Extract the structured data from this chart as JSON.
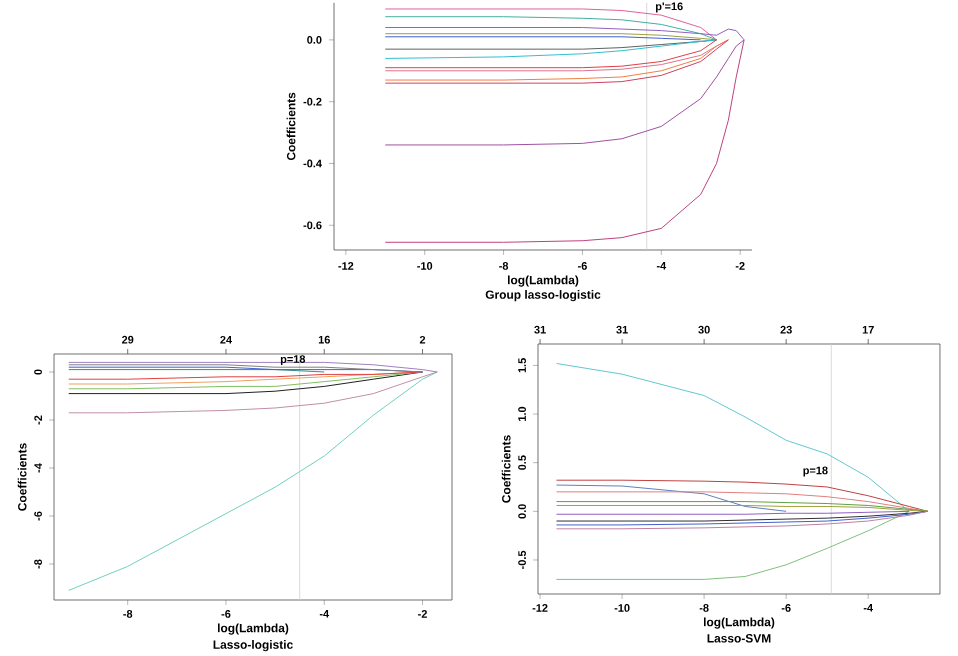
{
  "chart_data": [
    {
      "type": "line",
      "title": "Group lasso-logistic",
      "xlabel": "log(Lambda)",
      "ylabel": "Coefficients",
      "x": [
        -11,
        -8,
        -6,
        -5,
        -4,
        -3,
        -2.6,
        -2.3,
        -2.1,
        -1.9
      ],
      "series": [
        {
          "color": "#e0609a",
          "values": [
            0.1,
            0.1,
            0.1,
            0.095,
            0.08,
            0.04,
            0,
            null,
            null,
            null
          ]
        },
        {
          "color": "#40b0a0",
          "values": [
            0.075,
            0.075,
            0.07,
            0.065,
            0.05,
            0.02,
            0,
            null,
            null,
            null
          ]
        },
        {
          "color": "#9060c0",
          "values": [
            0.04,
            0.04,
            0.04,
            0.035,
            0.03,
            0.02,
            0.015,
            0.035,
            0.03,
            0
          ]
        },
        {
          "color": "#a0a040",
          "values": [
            0.02,
            0.02,
            0.02,
            0.02,
            0.015,
            0.005,
            0,
            null,
            null,
            null
          ]
        },
        {
          "color": "#4060d0",
          "values": [
            0.01,
            0.01,
            0.01,
            0.01,
            0.005,
            0,
            null,
            null,
            null,
            null
          ]
        },
        {
          "color": "#606060",
          "values": [
            -0.03,
            -0.03,
            -0.03,
            -0.025,
            -0.015,
            -0.005,
            0,
            null,
            null,
            null
          ]
        },
        {
          "color": "#30c0d0",
          "values": [
            -0.06,
            -0.055,
            -0.045,
            -0.035,
            -0.02,
            -0.005,
            0,
            null,
            null,
            null
          ]
        },
        {
          "color": "#e04040",
          "values": [
            -0.09,
            -0.09,
            -0.09,
            -0.085,
            -0.07,
            -0.035,
            0,
            null,
            null,
            null
          ]
        },
        {
          "color": "#e07090",
          "values": [
            -0.1,
            -0.1,
            -0.1,
            -0.095,
            -0.08,
            -0.05,
            -0.02,
            0,
            null,
            null
          ]
        },
        {
          "color": "#f08040",
          "values": [
            -0.13,
            -0.13,
            -0.125,
            -0.12,
            -0.1,
            -0.06,
            -0.02,
            0,
            null,
            null
          ]
        },
        {
          "color": "#d04060",
          "values": [
            -0.14,
            -0.14,
            -0.14,
            -0.135,
            -0.115,
            -0.07,
            -0.03,
            0,
            null,
            null
          ]
        },
        {
          "color": "#a050a0",
          "values": [
            -0.34,
            -0.34,
            -0.335,
            -0.32,
            -0.28,
            -0.19,
            -0.12,
            -0.06,
            -0.02,
            0
          ]
        },
        {
          "color": "#c04080",
          "values": [
            -0.655,
            -0.655,
            -0.65,
            -0.64,
            -0.61,
            -0.5,
            -0.4,
            -0.26,
            -0.12,
            0
          ]
        }
      ],
      "xlim": [
        -12.3,
        -1.7
      ],
      "ylim": [
        -0.68,
        0.12
      ],
      "xticks": [
        -12,
        -10,
        -8,
        -6,
        -4,
        -2
      ],
      "yticks": [
        {
          "value": 0,
          "label": "0.0"
        },
        {
          "value": -0.2,
          "label": "-0.2"
        },
        {
          "value": -0.4,
          "label": "-0.4"
        },
        {
          "value": -0.6,
          "label": "-0.6"
        }
      ],
      "ref_lines": [
        {
          "axis": "x",
          "value": -4.37,
          "color": "#d0d0d0"
        }
      ],
      "annotations": [
        {
          "text": "p'=16",
          "x": -3.8,
          "y": 0.105
        }
      ]
    },
    {
      "type": "line",
      "title": "Lasso-logistic",
      "xlabel": "log(Lambda)",
      "ylabel": "Coefficients",
      "x": [
        -9.2,
        -8,
        -6,
        -5,
        -4,
        -3,
        -2,
        -1.7
      ],
      "series": [
        {
          "color": "#70d0c0",
          "values": [
            -9.1,
            -8.1,
            -5.9,
            -4.8,
            -3.5,
            -1.8,
            -0.3,
            0
          ]
        },
        {
          "color": "#c090a8",
          "values": [
            -1.7,
            -1.7,
            -1.6,
            -1.5,
            -1.3,
            -0.9,
            -0.2,
            0
          ]
        },
        {
          "color": "#202020",
          "values": [
            -0.9,
            -0.9,
            -0.9,
            -0.8,
            -0.6,
            -0.3,
            0,
            null
          ]
        },
        {
          "color": "#80c060",
          "values": [
            -0.7,
            -0.7,
            -0.6,
            -0.6,
            -0.4,
            -0.2,
            0,
            null
          ]
        },
        {
          "color": "#f0a060",
          "values": [
            -0.5,
            -0.5,
            -0.4,
            -0.3,
            -0.2,
            -0.1,
            0,
            null
          ]
        },
        {
          "color": "#e04040",
          "values": [
            -0.3,
            -0.3,
            -0.2,
            -0.2,
            -0.1,
            -0.1,
            0,
            null
          ]
        },
        {
          "color": "#309080",
          "values": [
            0.1,
            0.1,
            0.1,
            0.1,
            0,
            null,
            null,
            null
          ]
        },
        {
          "color": "#4060d0",
          "values": [
            0.2,
            0.2,
            0.2,
            0.1,
            0.1,
            0.1,
            0,
            null
          ]
        },
        {
          "color": "#808080",
          "values": [
            0.3,
            0.3,
            0.3,
            0.2,
            0.2,
            0.1,
            0,
            null
          ]
        },
        {
          "color": "#a080c0",
          "values": [
            0.4,
            0.4,
            0.4,
            0.4,
            0.4,
            0.3,
            0.1,
            0
          ]
        }
      ],
      "xlim": [
        -9.5,
        -1.4
      ],
      "ylim": [
        -9.5,
        0.75
      ],
      "xticks": [
        -8,
        -6,
        -4,
        -2
      ],
      "yticks": [
        0,
        -2,
        -4,
        -6,
        -8
      ],
      "ref_lines": [
        {
          "axis": "x",
          "value": -4.5,
          "color": "#d0d0d0"
        }
      ],
      "annotations": [
        "p=18",
        "29",
        "24",
        "16",
        "2"
      ]
    },
    {
      "type": "line",
      "title": "Lasso-SVM",
      "xlabel": "log(Lambda)",
      "ylabel": "Coefficients",
      "x": [
        -11.6,
        -10,
        -8,
        -7,
        -6,
        -5,
        -4,
        -3,
        -2.55
      ],
      "series": [
        {
          "color": "#60c8d0",
          "values": [
            1.52,
            1.41,
            1.19,
            0.97,
            0.73,
            0.59,
            0.35,
            0,
            null
          ]
        },
        {
          "color": "#80c080",
          "values": [
            -0.7,
            -0.7,
            -0.7,
            -0.67,
            -0.55,
            -0.38,
            -0.2,
            0,
            null
          ]
        },
        {
          "color": "#c04040",
          "values": [
            0.32,
            0.32,
            0.31,
            0.3,
            0.28,
            0.25,
            0.16,
            0.05,
            0
          ]
        },
        {
          "color": "#6080c0",
          "values": [
            0.27,
            0.26,
            0.18,
            0.05,
            0,
            null,
            null,
            null,
            null
          ]
        },
        {
          "color": "#e08080",
          "values": [
            0.2,
            0.2,
            0.2,
            0.19,
            0.18,
            0.15,
            0.1,
            0.03,
            0
          ]
        },
        {
          "color": "#60a040",
          "values": [
            0.1,
            0.1,
            0.1,
            0.1,
            0.09,
            0.08,
            0.06,
            0.02,
            0
          ]
        },
        {
          "color": "#a0a040",
          "values": [
            0.06,
            0.06,
            0.06,
            0.06,
            0.05,
            0.05,
            0.04,
            0.01,
            0
          ]
        },
        {
          "color": "#9060c0",
          "values": [
            -0.03,
            -0.03,
            -0.03,
            -0.03,
            -0.02,
            -0.02,
            -0.01,
            0,
            null
          ]
        },
        {
          "color": "#303030",
          "values": [
            -0.1,
            -0.1,
            -0.1,
            -0.09,
            -0.08,
            -0.07,
            -0.05,
            -0.02,
            0
          ]
        },
        {
          "color": "#4060d0",
          "values": [
            -0.14,
            -0.14,
            -0.13,
            -0.12,
            -0.11,
            -0.1,
            -0.07,
            -0.03,
            0
          ]
        },
        {
          "color": "#c080a0",
          "values": [
            -0.18,
            -0.18,
            -0.17,
            -0.16,
            -0.15,
            -0.13,
            -0.1,
            -0.04,
            0
          ]
        }
      ],
      "xlim": [
        -12.05,
        -2.25
      ],
      "ylim": [
        -0.85,
        1.72
      ],
      "xticks": [
        -12,
        -10,
        -8,
        -6,
        -4
      ],
      "yticks": [
        {
          "value": -0.5,
          "label": "-0.5"
        },
        {
          "value": 0,
          "label": "0.0"
        },
        {
          "value": 0.5,
          "label": "0.5"
        },
        {
          "value": 1,
          "label": "1.0"
        },
        {
          "value": 1.5,
          "label": "1.5"
        }
      ],
      "ref_lines": [
        {
          "axis": "x",
          "value": -4.9,
          "color": "#d0d0d0"
        }
      ],
      "annotations": [
        "p=18",
        "31",
        "31",
        "30",
        "23",
        "17"
      ]
    }
  ]
}
